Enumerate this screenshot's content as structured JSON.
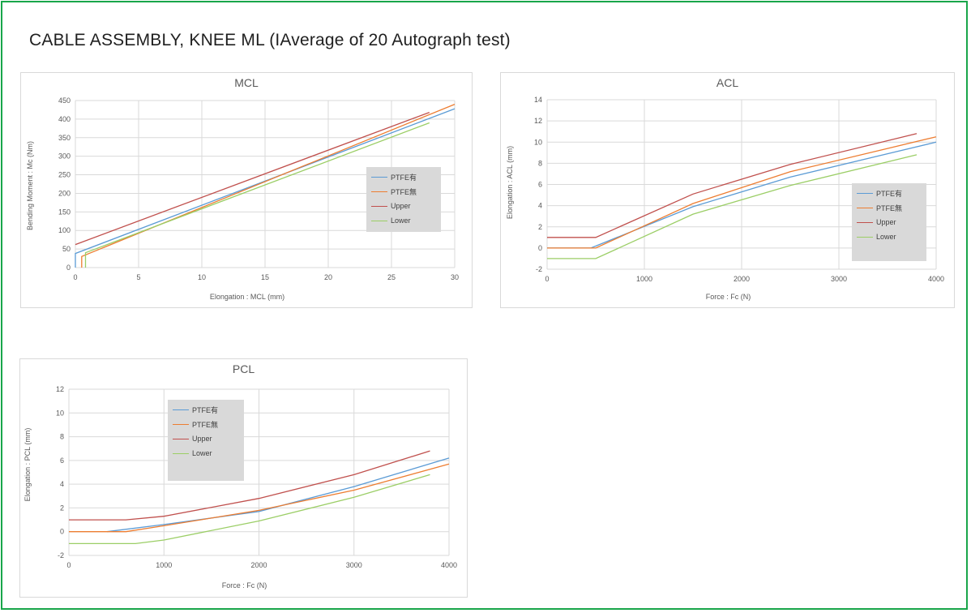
{
  "page": {
    "title": "CABLE ASSEMBLY, KNEE ML (IAverage of 20  Autograph test)"
  },
  "colors": {
    "frame": "#19a64a",
    "ptfe_yes": "#5b9bd5",
    "ptfe_no": "#ed7d31",
    "upper": "#c0504d",
    "lower": "#9bce66"
  },
  "chart_data": [
    {
      "id": "mcl",
      "type": "line",
      "title": "MCL",
      "xlabel": "Elongation : MCL (mm)",
      "ylabel": "Bending Moment : Mc (Nm)",
      "xlim": [
        0,
        30
      ],
      "ylim": [
        0,
        450
      ],
      "xticks": [
        0,
        5,
        10,
        15,
        20,
        25,
        30
      ],
      "yticks": [
        0,
        50,
        100,
        150,
        200,
        250,
        300,
        350,
        400,
        450
      ],
      "grid": true,
      "legend_position": "right",
      "series": [
        {
          "name": "PTFE有",
          "color": "#5b9bd5",
          "points": [
            [
              0,
              0
            ],
            [
              0,
              38
            ],
            [
              30,
              428
            ]
          ]
        },
        {
          "name": "PTFE無",
          "color": "#ed7d31",
          "points": [
            [
              0.5,
              0
            ],
            [
              0.5,
              30
            ],
            [
              30,
              440
            ]
          ]
        },
        {
          "name": "Upper",
          "color": "#c0504d",
          "points": [
            [
              0,
              62
            ],
            [
              28,
              418
            ]
          ]
        },
        {
          "name": "Lower",
          "color": "#9bce66",
          "points": [
            [
              0.8,
              0
            ],
            [
              0.8,
              40
            ],
            [
              28,
              390
            ]
          ]
        }
      ]
    },
    {
      "id": "acl",
      "type": "line",
      "title": "ACL",
      "xlabel": "Force : Fc (N)",
      "ylabel": "Elongation : ACL (mm)",
      "xlim": [
        0,
        4000
      ],
      "ylim": [
        -2,
        14
      ],
      "xticks": [
        0,
        1000,
        2000,
        3000,
        4000
      ],
      "yticks": [
        -2,
        0,
        2,
        4,
        6,
        8,
        10,
        12,
        14
      ],
      "grid": true,
      "legend_position": "right",
      "series": [
        {
          "name": "PTFE有",
          "color": "#5b9bd5",
          "points": [
            [
              0,
              0
            ],
            [
              450,
              0
            ],
            [
              1500,
              3.9
            ],
            [
              2500,
              6.7
            ],
            [
              3500,
              8.9
            ],
            [
              4000,
              10
            ]
          ]
        },
        {
          "name": "PTFE無",
          "color": "#ed7d31",
          "points": [
            [
              0,
              0
            ],
            [
              500,
              0
            ],
            [
              1500,
              4.2
            ],
            [
              2500,
              7.2
            ],
            [
              3500,
              9.4
            ],
            [
              4000,
              10.5
            ]
          ]
        },
        {
          "name": "Upper",
          "color": "#c0504d",
          "points": [
            [
              0,
              1
            ],
            [
              500,
              1
            ],
            [
              1500,
              5.1
            ],
            [
              2500,
              7.9
            ],
            [
              3800,
              10.8
            ]
          ]
        },
        {
          "name": "Lower",
          "color": "#9bce66",
          "points": [
            [
              0,
              -1
            ],
            [
              500,
              -1
            ],
            [
              1500,
              3.2
            ],
            [
              2500,
              5.9
            ],
            [
              3800,
              8.8
            ]
          ]
        }
      ]
    },
    {
      "id": "pcl",
      "type": "line",
      "title": "PCL",
      "xlabel": "Force : Fc (N)",
      "ylabel": "Elongation : PCL (mm)",
      "xlim": [
        0,
        4000
      ],
      "ylim": [
        -2,
        12
      ],
      "xticks": [
        0,
        1000,
        2000,
        3000,
        4000
      ],
      "yticks": [
        -2,
        0,
        2,
        4,
        6,
        8,
        10,
        12
      ],
      "grid": true,
      "legend_position": "top-left",
      "series": [
        {
          "name": "PTFE有",
          "color": "#5b9bd5",
          "points": [
            [
              400,
              0
            ],
            [
              1000,
              0.6
            ],
            [
              2000,
              1.7
            ],
            [
              3000,
              3.8
            ],
            [
              4000,
              6.2
            ]
          ]
        },
        {
          "name": "PTFE無",
          "color": "#ed7d31",
          "points": [
            [
              0,
              0
            ],
            [
              600,
              0
            ],
            [
              1000,
              0.5
            ],
            [
              2000,
              1.8
            ],
            [
              3000,
              3.5
            ],
            [
              4000,
              5.7
            ]
          ]
        },
        {
          "name": "Upper",
          "color": "#c0504d",
          "points": [
            [
              0,
              1
            ],
            [
              600,
              1
            ],
            [
              1000,
              1.3
            ],
            [
              2000,
              2.8
            ],
            [
              3000,
              4.8
            ],
            [
              3800,
              6.8
            ]
          ]
        },
        {
          "name": "Lower",
          "color": "#9bce66",
          "points": [
            [
              0,
              -1
            ],
            [
              700,
              -1
            ],
            [
              1000,
              -0.7
            ],
            [
              2000,
              0.9
            ],
            [
              3000,
              2.9
            ],
            [
              3800,
              4.8
            ]
          ]
        }
      ]
    }
  ]
}
